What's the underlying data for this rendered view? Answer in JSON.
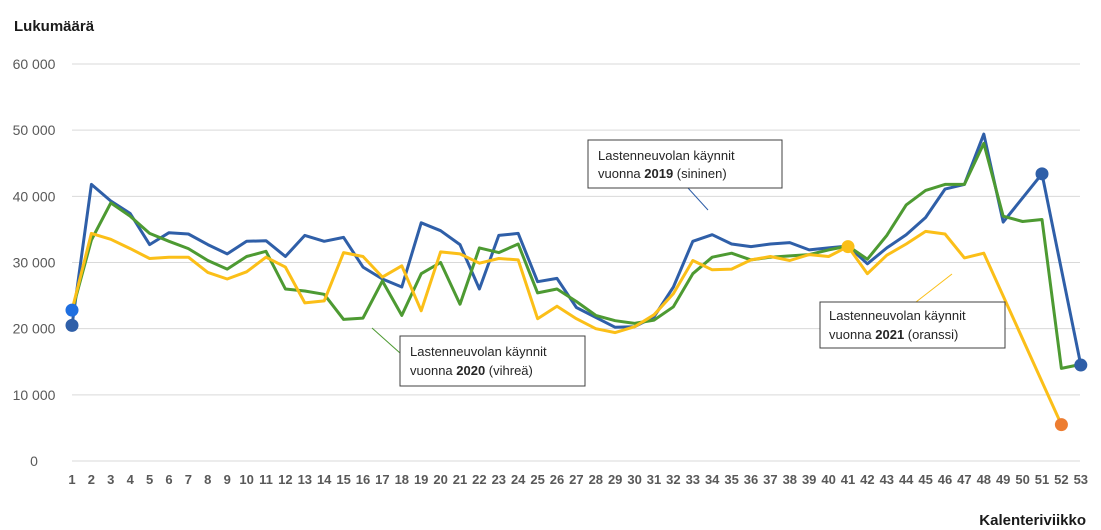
{
  "chart_data": {
    "type": "line",
    "ylabel": "Lukumäärä",
    "xlabel": "Kalenteriviikko",
    "ylim": [
      0,
      60000
    ],
    "yticks": [
      0,
      10000,
      20000,
      30000,
      40000,
      50000,
      60000
    ],
    "ytick_labels": [
      "0",
      "10 000",
      "20 000",
      "30 000",
      "40 000",
      "50 000",
      "60 000"
    ],
    "x": [
      "1",
      "2",
      "3",
      "4",
      "5",
      "6",
      "7",
      "8",
      "9",
      "10",
      "11",
      "12",
      "13",
      "14",
      "15",
      "16",
      "17",
      "18",
      "19",
      "20",
      "21",
      "22",
      "23",
      "24",
      "25",
      "26",
      "27",
      "28",
      "29",
      "30",
      "31",
      "32",
      "33",
      "34",
      "35",
      "36",
      "37",
      "38",
      "39",
      "40",
      "41",
      "42",
      "43",
      "44",
      "45",
      "46",
      "47",
      "48",
      "49",
      "50",
      "51",
      "52",
      "53"
    ],
    "grid": true,
    "series": [
      {
        "key": "2019",
        "color": "#2f5fa8",
        "values": [
          20500,
          41800,
          39300,
          37400,
          32700,
          34500,
          34300,
          32700,
          31300,
          33200,
          33300,
          30900,
          34100,
          33200,
          33800,
          29300,
          27500,
          26300,
          36000,
          34800,
          32700,
          26000,
          34100,
          34400,
          27100,
          27600,
          23200,
          21700,
          20200,
          20300,
          21800,
          26300,
          33200,
          34200,
          32800,
          32400,
          32800,
          33000,
          31900,
          32200,
          32500,
          29800,
          32200,
          34200,
          36800,
          41100,
          41800,
          49400,
          36100,
          null,
          43400,
          null,
          14500
        ],
        "markers": [
          1,
          51,
          53
        ]
      },
      {
        "key": "2020",
        "color": "#4d9a32",
        "values": [
          22600,
          33400,
          39000,
          37000,
          34400,
          33200,
          32100,
          30300,
          29000,
          30900,
          31700,
          26000,
          25700,
          25200,
          21400,
          21600,
          27200,
          22000,
          28300,
          30000,
          23700,
          32200,
          31500,
          32800,
          25400,
          26000,
          24100,
          22000,
          21200,
          20800,
          21300,
          23300,
          28300,
          30800,
          31400,
          30400,
          30800,
          31000,
          31200,
          31900,
          32500,
          30500,
          34100,
          38700,
          40900,
          41800,
          41800,
          48000,
          37000,
          36200,
          36500,
          14000,
          14600
        ],
        "markers": []
      },
      {
        "key": "2021",
        "color": "#fbbf18",
        "values": [
          22800,
          34400,
          33500,
          32100,
          30600,
          30800,
          30800,
          28500,
          27500,
          28600,
          30800,
          29300,
          23900,
          24200,
          31500,
          30900,
          27800,
          29500,
          22700,
          31600,
          31300,
          29900,
          30600,
          30400,
          21500,
          23400,
          21500,
          20000,
          19400,
          20300,
          22100,
          25300,
          30300,
          28900,
          29000,
          30400,
          30900,
          30300,
          31200,
          30900,
          32400,
          28300,
          31100,
          32800,
          34700,
          34300,
          30700,
          31400,
          null,
          null,
          null,
          5500,
          null
        ],
        "markers": [
          1,
          41,
          52
        ],
        "marker_colors": [
          "#1f6fe0",
          "#fbbf18",
          "#ed7d31"
        ]
      }
    ],
    "annotations": [
      {
        "target": "2019",
        "line1": "Lastenneuvolan käynnit",
        "line2_pre": "vuonna ",
        "line2_bold": "2019",
        "line2_post": " (sininen)"
      },
      {
        "target": "2020",
        "line1": "Lastenneuvolan käynnit",
        "line2_pre": "vuonna ",
        "line2_bold": "2020",
        "line2_post": " (vihreä)"
      },
      {
        "target": "2021",
        "line1": "Lastenneuvolan käynnit",
        "line2_pre": "vuonna ",
        "line2_bold": "2021",
        "line2_post": " (oranssi)"
      }
    ]
  }
}
